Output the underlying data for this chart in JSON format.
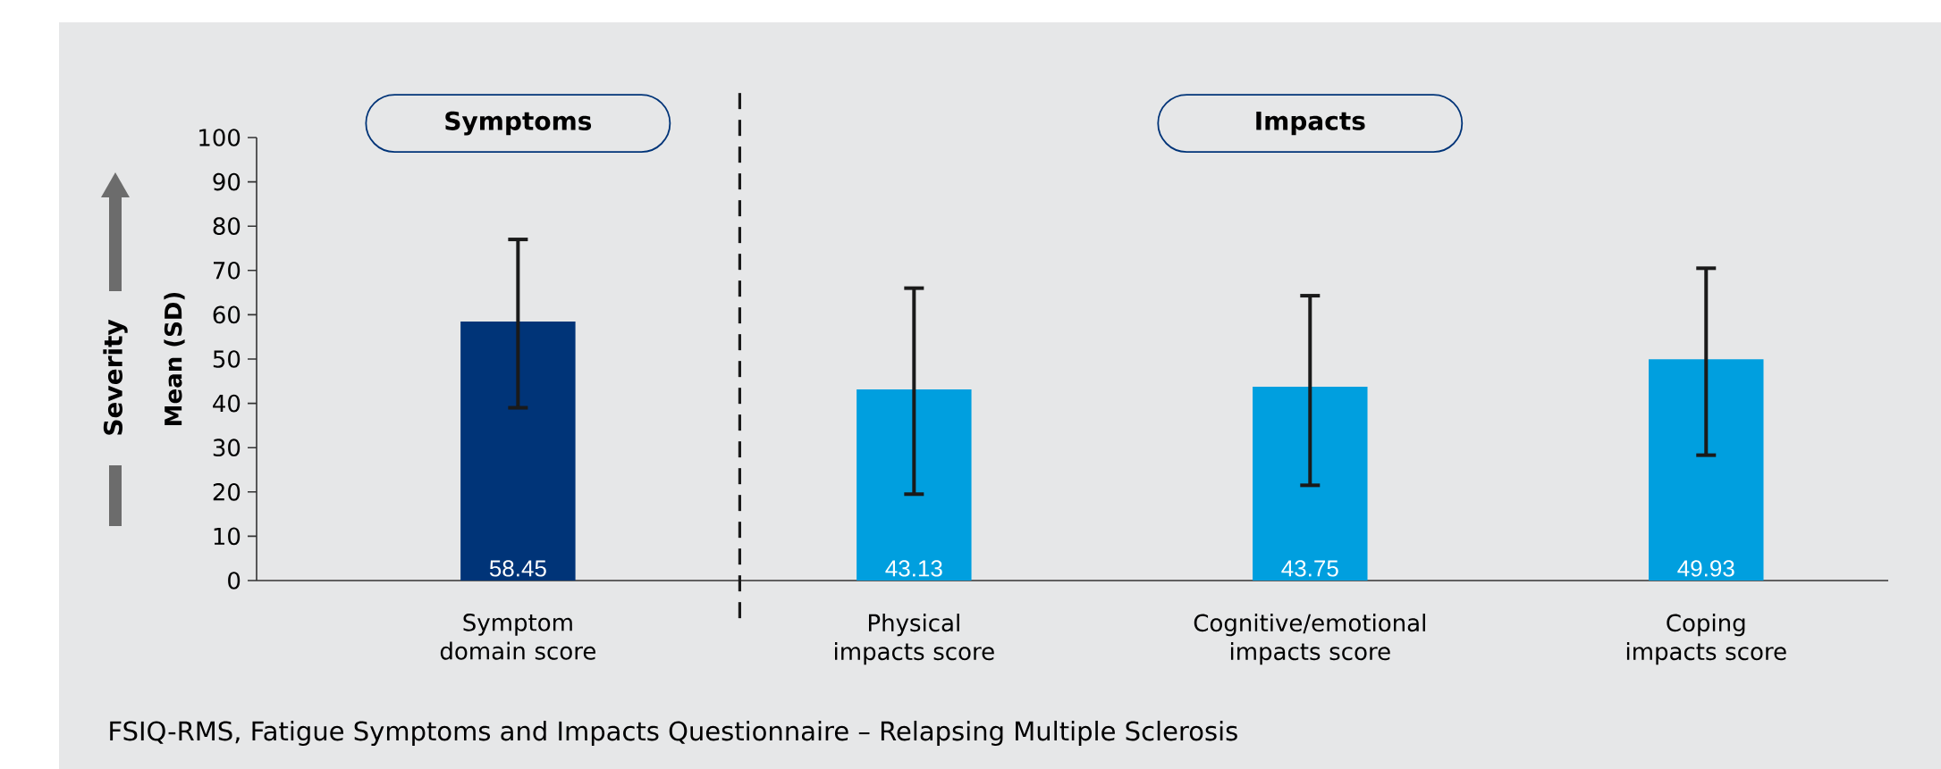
{
  "chart_data": {
    "type": "bar",
    "categories": [
      "Symptom domain score",
      "Physical impacts score",
      "Cognitive/emotional impacts score",
      "Coping impacts score"
    ],
    "values": [
      58.45,
      43.13,
      43.75,
      49.93
    ],
    "colors": [
      "#003478",
      "#009fdf",
      "#009fdf",
      "#009fdf"
    ],
    "errors": [
      [
        39,
        77
      ],
      [
        19.5,
        66
      ],
      [
        21.5,
        64.3
      ],
      [
        28.3,
        70.5
      ]
    ],
    "data_labels": true,
    "ylabel": "Mean (SD)",
    "ylim": [
      0,
      100
    ],
    "yticks": [
      0,
      10,
      20,
      30,
      40,
      50,
      60,
      70,
      80,
      90,
      100
    ],
    "annotations": [
      "Symptoms",
      "Impacts",
      "Severity",
      "FSIQ-RMS, Fatigue Symptoms and Impacts Questionnaire – Relapsing Multiple Sclerosis"
    ]
  }
}
